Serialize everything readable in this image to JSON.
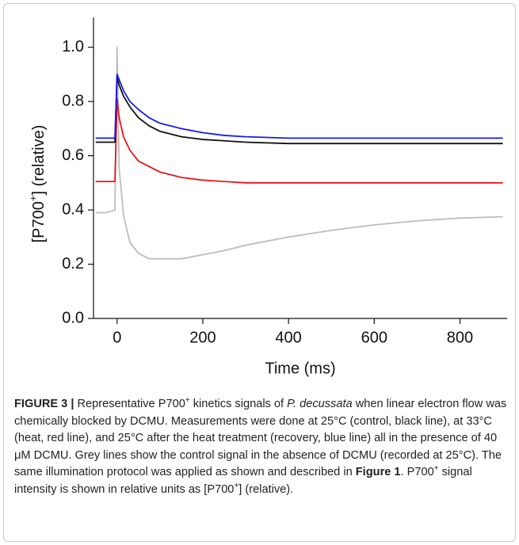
{
  "chart_data": {
    "type": "line",
    "xlabel": "Time (ms)",
    "ylabel": [
      {
        "text": "[P700"
      },
      {
        "text": "+",
        "format": "sup"
      },
      {
        "text": "] (relative)"
      }
    ],
    "x": [
      -50,
      -25,
      -5,
      0,
      5,
      15,
      30,
      50,
      75,
      100,
      150,
      200,
      250,
      300,
      400,
      500,
      600,
      700,
      800,
      900
    ],
    "series": [
      {
        "color": "#bdbdbd",
        "values": [
          0.39,
          0.39,
          0.4,
          1.0,
          0.55,
          0.38,
          0.28,
          0.24,
          0.22,
          0.22,
          0.22,
          0.235,
          0.25,
          0.27,
          0.3,
          0.325,
          0.345,
          0.36,
          0.37,
          0.375
        ]
      },
      {
        "color": "#e8151b",
        "values": [
          0.505,
          0.505,
          0.505,
          0.81,
          0.74,
          0.67,
          0.62,
          0.58,
          0.56,
          0.54,
          0.52,
          0.51,
          0.505,
          0.5,
          0.5,
          0.5,
          0.5,
          0.5,
          0.5,
          0.5
        ]
      },
      {
        "color": "#111111",
        "values": [
          0.65,
          0.65,
          0.65,
          0.89,
          0.86,
          0.82,
          0.78,
          0.74,
          0.71,
          0.69,
          0.67,
          0.66,
          0.655,
          0.65,
          0.645,
          0.645,
          0.645,
          0.645,
          0.645,
          0.645
        ]
      },
      {
        "color": "#1a1aeb",
        "values": [
          0.665,
          0.665,
          0.665,
          0.9,
          0.88,
          0.84,
          0.8,
          0.77,
          0.74,
          0.72,
          0.7,
          0.685,
          0.675,
          0.67,
          0.665,
          0.665,
          0.665,
          0.665,
          0.665,
          0.665
        ]
      }
    ],
    "xlim": [
      -55,
      910
    ],
    "ylim": [
      0,
      1.11
    ],
    "xticks": [
      0,
      200,
      400,
      600,
      800
    ],
    "yticks": [
      {
        "value": 0,
        "label": "0.0"
      },
      {
        "value": 0.2,
        "label": "0.2"
      },
      {
        "value": 0.4,
        "label": "0.4"
      },
      {
        "value": 0.6,
        "label": "0.6"
      },
      {
        "value": 0.8,
        "label": "0.8"
      },
      {
        "value": 1.0,
        "label": "1.0"
      }
    ],
    "grid": false
  },
  "caption": [
    {
      "text": "FIGURE 3 |",
      "format": "b"
    },
    {
      "text": " Representative P700"
    },
    {
      "text": "+",
      "format": "sup"
    },
    {
      "text": " kinetics signals of "
    },
    {
      "text": "P. decussata",
      "format": "i"
    },
    {
      "text": " when linear electron flow was chemically blocked by DCMU. Measurements were done at 25°C (control, black line), at 33°C (heat, red line), and 25°C after the heat treatment (recovery, blue line) all in the presence of 40 μM DCMU. Grey lines show the control signal in the absence of DCMU (recorded at 25°C). The same illumination protocol was applied as shown and described in "
    },
    {
      "text": "Figure 1",
      "format": "b"
    },
    {
      "text": ". P700"
    },
    {
      "text": "+",
      "format": "sup"
    },
    {
      "text": " signal intensity is shown in relative units as [P700"
    },
    {
      "text": "+",
      "format": "sup"
    },
    {
      "text": "] (relative)."
    }
  ]
}
